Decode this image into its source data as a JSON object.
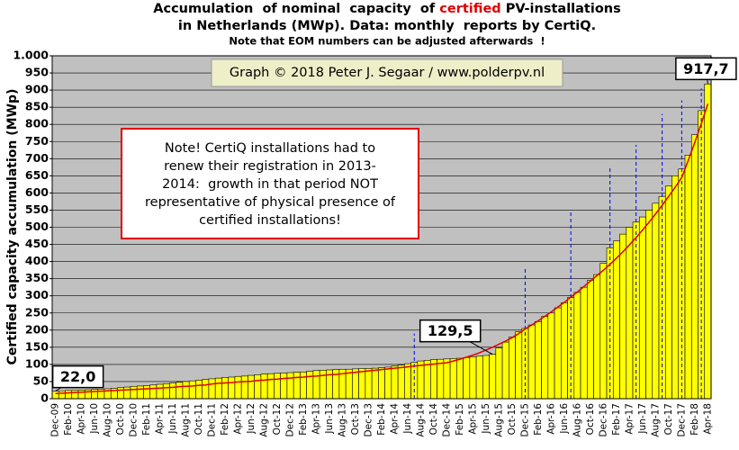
{
  "chart_data": {
    "type": "bar",
    "title_parts": [
      {
        "text": "Accumulation  of nominal  capacity  of ",
        "color": "#000000"
      },
      {
        "text": "certified",
        "color": "#e00000"
      },
      {
        "text": " PV-installations",
        "color": "#000000"
      }
    ],
    "subtitle": "in Netherlands (MWp). Data: monthly  reports by CertiQ.",
    "note": "Note that EOM numbers can be adjusted afterwards  !",
    "y_label": "Certified capacity accumulation (MWp)",
    "credit": "Graph © 2018 Peter J. Segaar / www.polderpv.nl",
    "note_box": [
      "Note! CertiQ installations had to",
      "renew their registration in 2013-",
      "2014:  growth in that period NOT",
      "representative of physical presence of",
      "certified installations!"
    ],
    "categories": [
      "Dec-09",
      null,
      "Feb-10",
      null,
      "Apr-10",
      null,
      "Jun-10",
      null,
      "Aug-10",
      null,
      "Oct-10",
      null,
      "Dec-10",
      null,
      "Feb-11",
      null,
      "Apr-11",
      null,
      "Jun-11",
      null,
      "Aug-11",
      null,
      "Oct-11",
      null,
      "Dec-11",
      null,
      "Feb-12",
      null,
      "Apr-12",
      null,
      "Jun-12",
      null,
      "Aug-12",
      null,
      "Oct-12",
      null,
      "Dec-12",
      null,
      "Feb-13",
      null,
      "Apr-13",
      null,
      "Jun-13",
      null,
      "Aug-13",
      null,
      "Oct-13",
      null,
      "Dec-13",
      null,
      "Feb-14",
      null,
      "Apr-14",
      null,
      "Jun-14",
      null,
      "Aug-14",
      null,
      "Oct-14",
      null,
      "Dec-14",
      null,
      "Feb-15",
      null,
      "Apr-15",
      null,
      "Jun-15",
      null,
      "Aug-15",
      null,
      "Oct-15",
      null,
      "Dec-15",
      null,
      "Feb-16",
      null,
      "Apr-16",
      null,
      "Jun-16",
      null,
      "Aug-16",
      null,
      "Oct-16",
      null,
      "Dec-16",
      null,
      "Feb-17",
      null,
      "Apr-17",
      null,
      "Jun-17",
      null,
      "Aug-17",
      null,
      "Oct-17",
      null,
      "Dec-17",
      null,
      "Feb-18",
      null,
      "Apr-18"
    ],
    "series": [
      {
        "style": "bar",
        "color": "#ffff00",
        "values": [
          22.0,
          23,
          24,
          24,
          25,
          26,
          27,
          28,
          29,
          30,
          32,
          34,
          36,
          37,
          38,
          40,
          42,
          44,
          46,
          48,
          50,
          52,
          54,
          56,
          58,
          60,
          62,
          63,
          65,
          66,
          68,
          70,
          72,
          73,
          74,
          75,
          76,
          77,
          78,
          80,
          82,
          83,
          84,
          85,
          86,
          86,
          87,
          88,
          88,
          89,
          90,
          92,
          95,
          98,
          102,
          106,
          110,
          112,
          114,
          115,
          116,
          117,
          118,
          120,
          122,
          124,
          126,
          129.5,
          148,
          165,
          180,
          195,
          205,
          215,
          225,
          240,
          250,
          265,
          280,
          295,
          310,
          325,
          345,
          362,
          395,
          440,
          460,
          480,
          500,
          515,
          530,
          550,
          570,
          590,
          620,
          650,
          670,
          710,
          770,
          840,
          917.7
        ],
        "value_labels": [
          "22,0",
          null,
          null,
          null,
          null,
          null,
          null,
          null,
          null,
          null,
          null,
          null,
          null,
          null,
          null,
          null,
          null,
          null,
          null,
          null,
          null,
          null,
          null,
          null,
          null,
          null,
          null,
          null,
          null,
          null,
          null,
          null,
          null,
          null,
          null,
          null,
          null,
          null,
          null,
          null,
          null,
          null,
          null,
          null,
          null,
          null,
          null,
          null,
          null,
          null,
          null,
          null,
          null,
          null,
          null,
          null,
          null,
          null,
          null,
          null,
          null,
          null,
          null,
          null,
          null,
          null,
          null,
          "129,5",
          null,
          null,
          null,
          null,
          null,
          null,
          null,
          null,
          null,
          null,
          null,
          null,
          null,
          null,
          null,
          null,
          null,
          null,
          null,
          null,
          null,
          null,
          null,
          null,
          null,
          null,
          null,
          null,
          null,
          null,
          null,
          null,
          "917,7"
        ]
      },
      {
        "style": "dashed",
        "color": "#0000ff",
        "values": [
          null,
          null,
          null,
          null,
          null,
          null,
          null,
          null,
          null,
          null,
          null,
          null,
          null,
          null,
          null,
          null,
          null,
          null,
          null,
          null,
          null,
          null,
          null,
          null,
          null,
          null,
          null,
          null,
          null,
          null,
          null,
          null,
          null,
          null,
          null,
          null,
          null,
          null,
          null,
          null,
          null,
          null,
          null,
          null,
          null,
          null,
          null,
          null,
          null,
          null,
          null,
          null,
          null,
          null,
          null,
          190,
          null,
          null,
          null,
          null,
          null,
          null,
          null,
          null,
          null,
          null,
          null,
          null,
          null,
          null,
          null,
          null,
          380,
          null,
          null,
          null,
          null,
          null,
          null,
          545,
          null,
          null,
          null,
          null,
          null,
          675,
          null,
          null,
          null,
          740,
          null,
          null,
          null,
          830,
          null,
          null,
          870,
          null,
          null,
          905,
          null
        ]
      },
      {
        "style": "line",
        "color": "#e00000",
        "values": [
          15,
          16,
          17,
          18,
          19,
          20,
          21,
          22,
          23,
          24,
          25,
          26,
          27,
          28,
          29,
          30,
          31,
          32,
          33,
          35,
          36,
          37,
          39,
          40,
          43,
          45,
          46,
          47,
          49,
          50,
          51,
          53,
          54,
          56,
          57,
          59,
          60,
          62,
          63,
          65,
          66,
          68,
          70,
          71,
          73,
          75,
          77,
          79,
          81,
          83,
          85,
          87,
          89,
          91,
          93,
          95,
          97,
          99,
          101,
          103,
          105,
          110,
          115,
          121,
          127,
          134,
          142,
          150,
          159,
          168,
          178,
          190,
          203,
          215,
          227,
          240,
          253,
          267,
          281,
          296,
          311,
          327,
          343,
          359,
          375,
          392,
          410,
          429,
          449,
          470,
          492,
          515,
          539,
          564,
          590,
          617,
          645,
          695,
          747,
          802,
          860
        ]
      }
    ],
    "ylim": [
      0,
      1000
    ],
    "yticks": [
      0,
      50,
      100,
      150,
      200,
      250,
      300,
      350,
      400,
      450,
      500,
      550,
      600,
      650,
      700,
      750,
      800,
      850,
      900,
      950,
      {
        "value": 1000,
        "label": "1.000"
      }
    ],
    "grid": true
  }
}
